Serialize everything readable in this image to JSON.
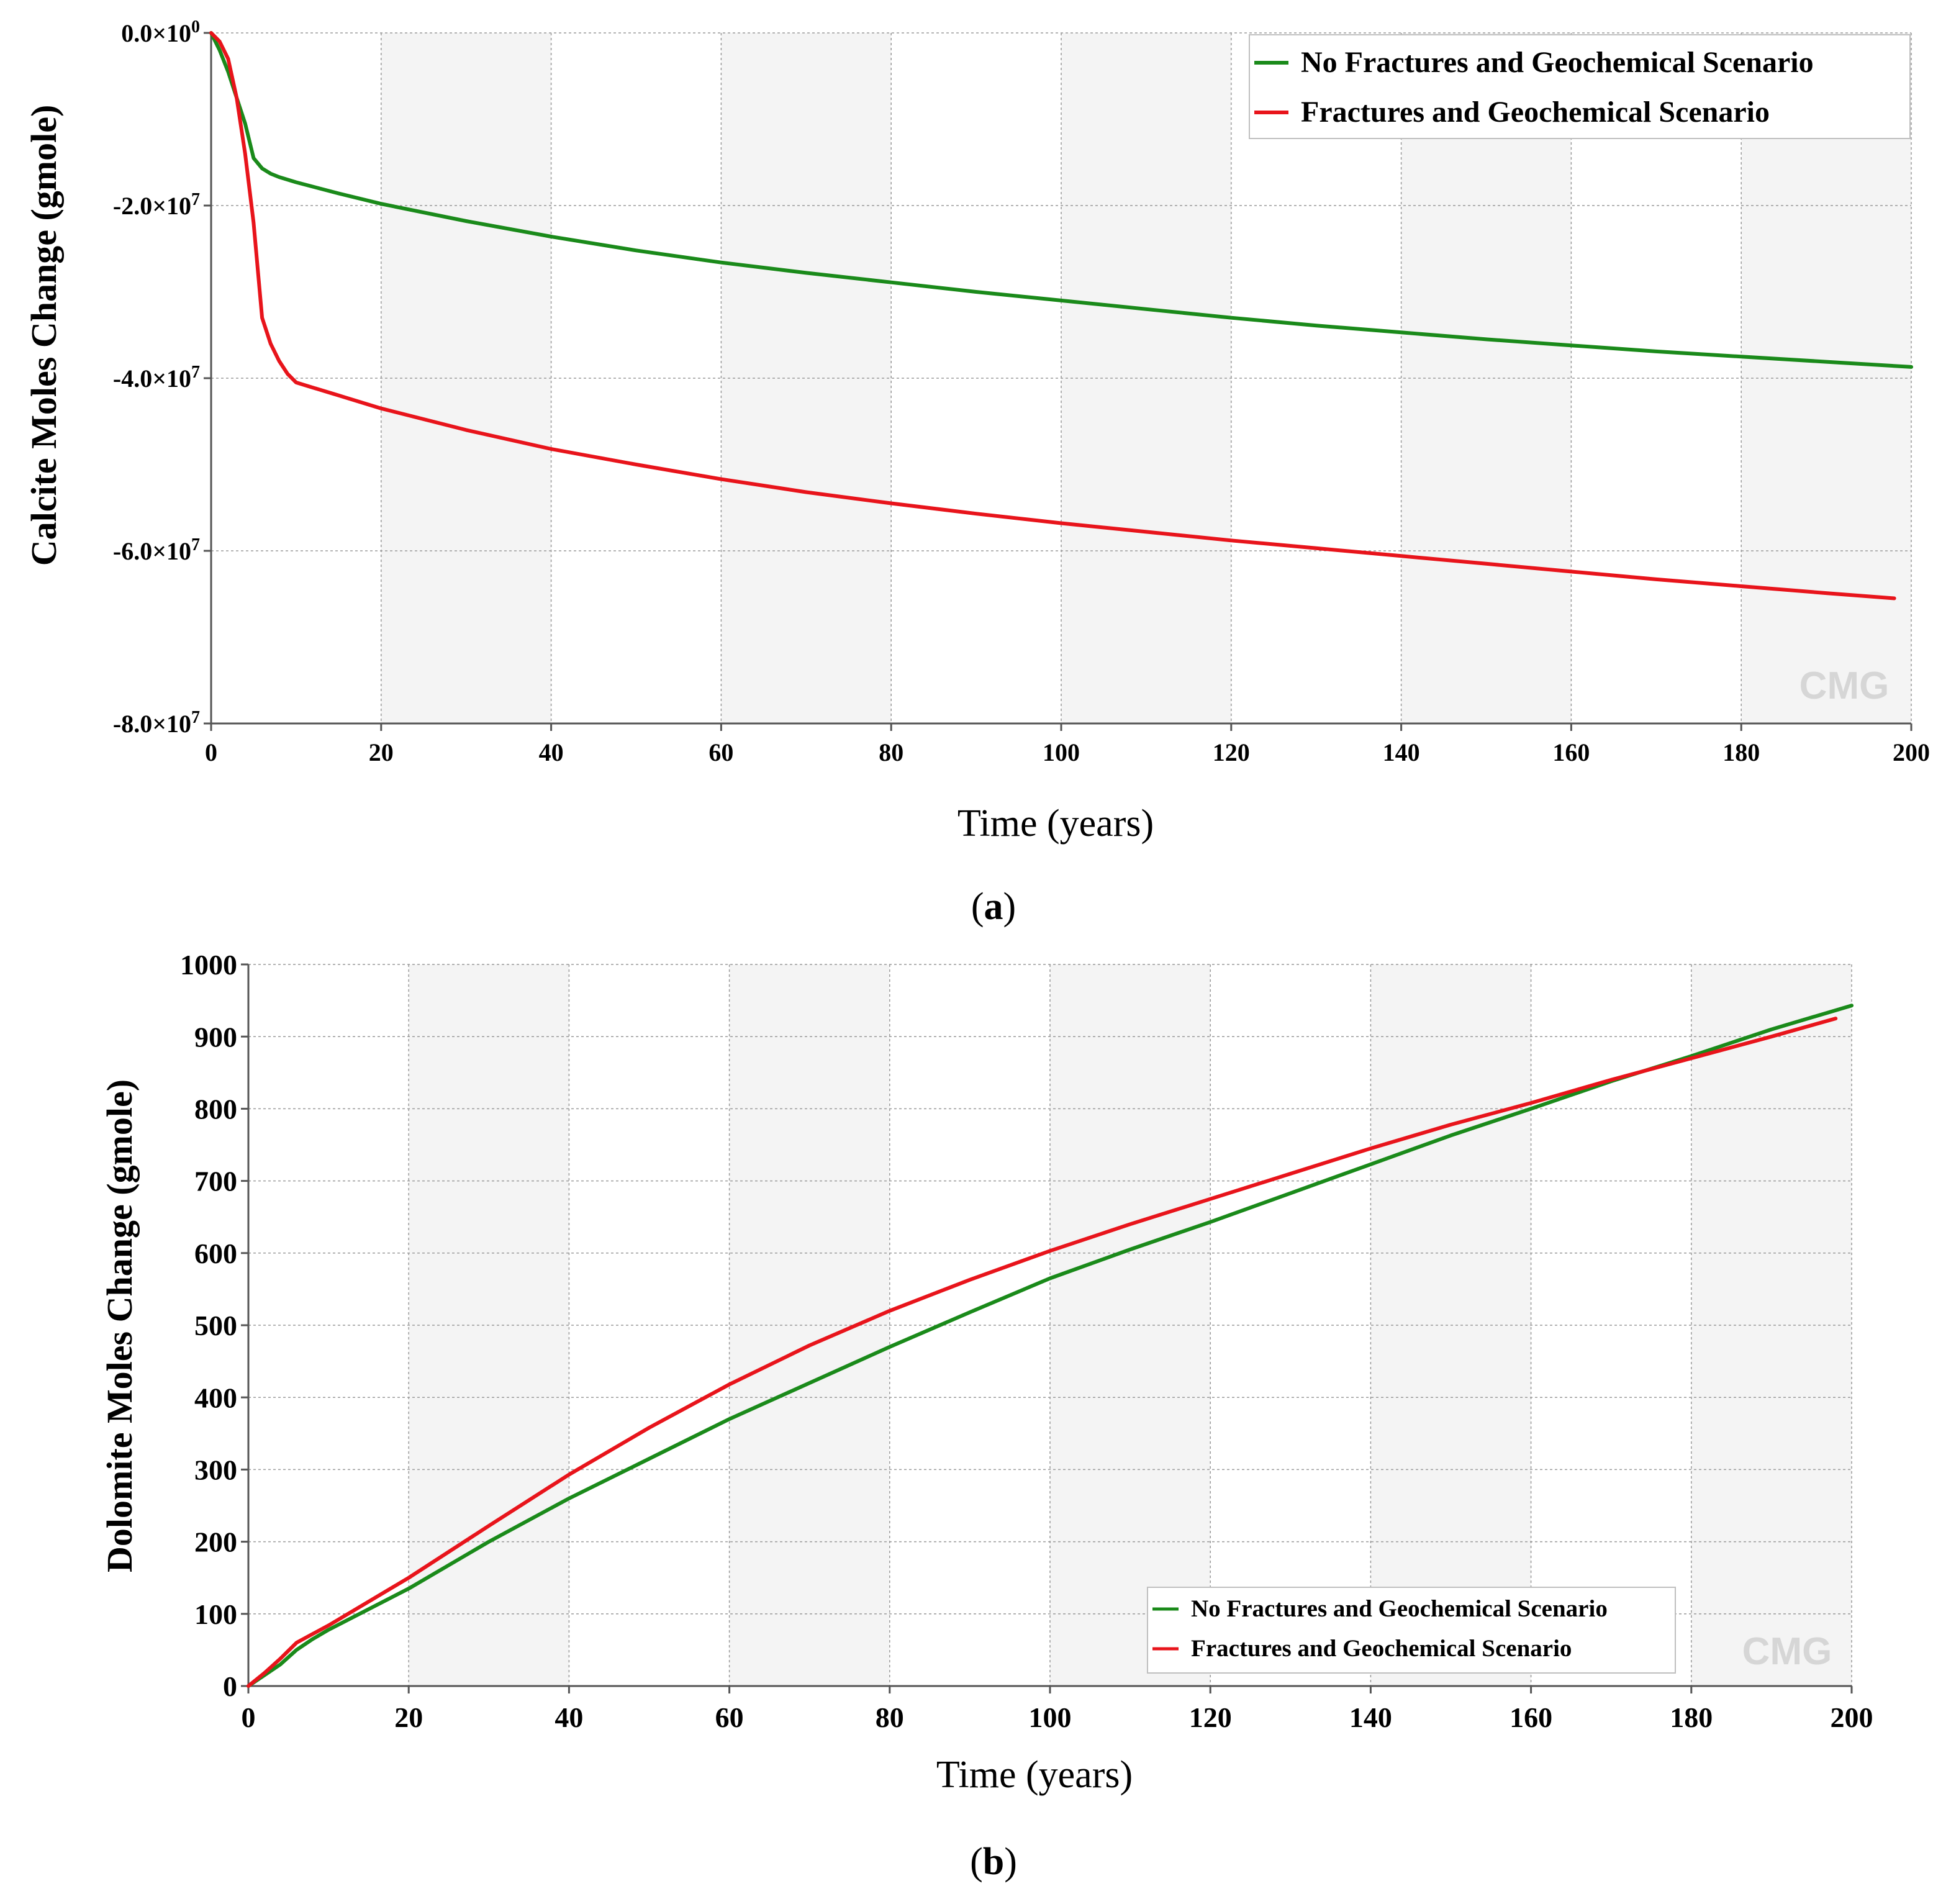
{
  "chart_data": [
    {
      "type": "line",
      "panel_label": "a",
      "xlabel": "Time (years)",
      "ylabel": "Calcite Moles Change  (gmole)",
      "xlim": [
        0,
        200
      ],
      "ylim": [
        -80000000,
        0
      ],
      "x_ticks": [
        0,
        20,
        40,
        60,
        80,
        100,
        120,
        140,
        160,
        180,
        200
      ],
      "y_ticks": [
        {
          "value": 0,
          "mantissa": "0.0×10",
          "exp": "0"
        },
        {
          "value": -20000000,
          "mantissa": "-2.0×10",
          "exp": "7"
        },
        {
          "value": -40000000,
          "mantissa": "-4.0×10",
          "exp": "7"
        },
        {
          "value": -60000000,
          "mantissa": "-6.0×10",
          "exp": "7"
        },
        {
          "value": -80000000,
          "mantissa": "-8.0×10",
          "exp": "7"
        }
      ],
      "legend_position": "top-right",
      "watermark": "CMG",
      "series": [
        {
          "name": "No Fractures and Geochemical Scenario",
          "color": "#1a8a1a",
          "x": [
            0,
            1,
            2,
            3,
            4,
            5,
            6,
            7,
            8,
            10,
            15,
            20,
            30,
            40,
            50,
            60,
            70,
            80,
            90,
            100,
            110,
            120,
            130,
            140,
            150,
            160,
            170,
            180,
            190,
            200
          ],
          "y": [
            0,
            -2000000,
            -4500000,
            -7500000,
            -10500000,
            -14500000,
            -15700000,
            -16300000,
            -16700000,
            -17300000,
            -18600000,
            -19800000,
            -21800000,
            -23600000,
            -25200000,
            -26600000,
            -27800000,
            -28900000,
            -30000000,
            -31000000,
            -32000000,
            -33000000,
            -33900000,
            -34700000,
            -35500000,
            -36200000,
            -36900000,
            -37500000,
            -38100000,
            -38700000
          ]
        },
        {
          "name": "Fractures and Geochemical Scenario",
          "color": "#e8141b",
          "x": [
            0,
            1,
            2,
            3,
            4,
            5,
            6,
            7,
            8,
            9,
            10,
            11,
            15,
            20,
            30,
            40,
            50,
            60,
            70,
            80,
            90,
            100,
            110,
            120,
            130,
            140,
            150,
            160,
            170,
            180,
            190,
            198
          ],
          "y": [
            0,
            -1000000,
            -3000000,
            -7500000,
            -14000000,
            -22000000,
            -33000000,
            -36000000,
            -38000000,
            -39500000,
            -40500000,
            -40800000,
            -42000000,
            -43500000,
            -46000000,
            -48200000,
            -50000000,
            -51700000,
            -53200000,
            -54500000,
            -55700000,
            -56800000,
            -57800000,
            -58800000,
            -59700000,
            -60600000,
            -61500000,
            -62400000,
            -63300000,
            -64100000,
            -64900000,
            -65500000
          ]
        }
      ]
    },
    {
      "type": "line",
      "panel_label": "b",
      "xlabel": "Time (years)",
      "ylabel": "Dolomite Moles Change  (gmole)",
      "xlim": [
        0,
        200
      ],
      "ylim": [
        0,
        1000
      ],
      "x_ticks": [
        0,
        20,
        40,
        60,
        80,
        100,
        120,
        140,
        160,
        180,
        200
      ],
      "y_ticks": [
        0,
        100,
        200,
        300,
        400,
        500,
        600,
        700,
        800,
        900,
        1000
      ],
      "legend_position": "bottom-right",
      "watermark": "CMG",
      "series": [
        {
          "name": "No Fractures and Geochemical Scenario",
          "color": "#1a8a1a",
          "x": [
            0,
            2,
            4,
            6,
            8,
            10,
            20,
            30,
            40,
            50,
            60,
            70,
            80,
            90,
            100,
            110,
            120,
            130,
            140,
            150,
            160,
            170,
            180,
            190,
            200
          ],
          "y": [
            0,
            15,
            30,
            50,
            65,
            78,
            135,
            200,
            260,
            315,
            370,
            420,
            470,
            518,
            565,
            605,
            643,
            683,
            723,
            763,
            800,
            838,
            873,
            910,
            943
          ]
        },
        {
          "name": "Fractures and Geochemical Scenario",
          "color": "#e8141b",
          "x": [
            0,
            2,
            4,
            6,
            8,
            10,
            20,
            30,
            40,
            50,
            60,
            70,
            80,
            90,
            100,
            110,
            120,
            130,
            140,
            150,
            160,
            170,
            180,
            190,
            198
          ],
          "y": [
            0,
            18,
            38,
            60,
            72,
            84,
            150,
            222,
            293,
            358,
            418,
            472,
            520,
            563,
            603,
            640,
            675,
            710,
            745,
            778,
            808,
            840,
            870,
            900,
            925
          ]
        }
      ]
    }
  ]
}
